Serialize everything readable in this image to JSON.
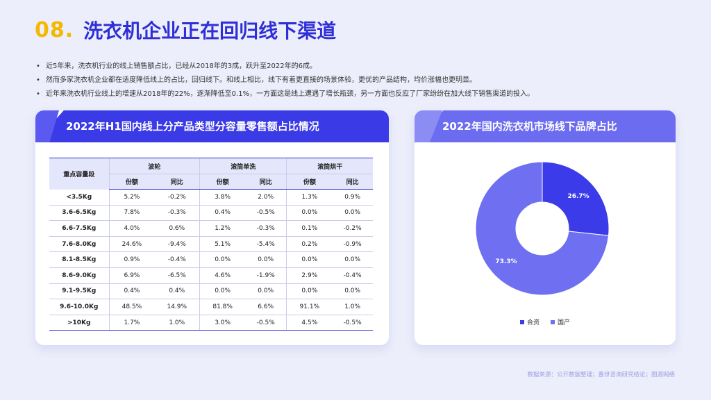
{
  "header": {
    "number": "08.",
    "title": "洗衣机企业正在回归线下渠道"
  },
  "bullets": [
    "近5年来，洗衣机行业的线上销售额占比，已经从2018年的3成，跃升至2022年的6成。",
    "然而多家洗衣机企业都在适度降低线上的占比，回归线下。和线上相比，线下有着更直接的场景体验，更优的产品结构，均价涨幅也更明显。",
    "近年来洗衣机行业线上的增速从2018年的22%，逐渐降低至0.1%，一方面这是线上遭遇了增长瓶颈，另一方面也反应了厂家纷纷在加大线下销售渠道的投入。"
  ],
  "left_card": {
    "title": "2022年H1国内线上分产品类型分容量零售额占比情况",
    "table": {
      "row_header": "重点容量段",
      "groups": [
        "波轮",
        "滚筒单洗",
        "滚筒烘干"
      ],
      "sub_headers": [
        "份额",
        "同比"
      ],
      "rows": [
        {
          "label": "<3.5Kg",
          "cells": [
            "5.2%",
            "-0.2%",
            "3.8%",
            "2.0%",
            "1.3%",
            "0.9%"
          ]
        },
        {
          "label": "3.6-6.5Kg",
          "cells": [
            "7.8%",
            "-0.3%",
            "0.4%",
            "-0.5%",
            "0.0%",
            "0.0%"
          ]
        },
        {
          "label": "6.6-7.5Kg",
          "cells": [
            "4.0%",
            "0.6%",
            "1.2%",
            "-0.3%",
            "0.1%",
            "-0.2%"
          ]
        },
        {
          "label": "7.6-8.0Kg",
          "cells": [
            "24.6%",
            "-9.4%",
            "5.1%",
            "-5.4%",
            "0.2%",
            "-0.9%"
          ]
        },
        {
          "label": "8.1-8.5Kg",
          "cells": [
            "0.9%",
            "-0.4%",
            "0.0%",
            "0.0%",
            "0.0%",
            "0.0%"
          ]
        },
        {
          "label": "8.6-9.0Kg",
          "cells": [
            "6.9%",
            "-6.5%",
            "4.6%",
            "-1.9%",
            "2.9%",
            "-0.4%"
          ]
        },
        {
          "label": "9.1-9.5Kg",
          "cells": [
            "0.4%",
            "0.4%",
            "0.0%",
            "0.0%",
            "0.0%",
            "0.0%"
          ]
        },
        {
          "label": "9.6-10.0Kg",
          "cells": [
            "48.5%",
            "14.9%",
            "81.8%",
            "6.6%",
            "91.1%",
            "1.0%"
          ]
        },
        {
          "label": ">10Kg",
          "cells": [
            "1.7%",
            "1.0%",
            "3.0%",
            "-0.5%",
            "4.5%",
            "-0.5%"
          ]
        }
      ]
    }
  },
  "right_card": {
    "title": "2022年国内洗衣机市场线下品牌占比"
  },
  "chart_data": {
    "type": "pie",
    "donut": true,
    "title": "2022年国内洗衣机市场线下品牌占比",
    "categories": [
      "合资",
      "国产"
    ],
    "values": [
      26.7,
      73.3
    ],
    "labels": [
      "26.7%",
      "73.3%"
    ],
    "colors": [
      "#3b3bea",
      "#6f6ff2"
    ],
    "legend_position": "bottom"
  },
  "source": "数据来源：公开数据整理；嘉世咨询研究结论；图源网络"
}
